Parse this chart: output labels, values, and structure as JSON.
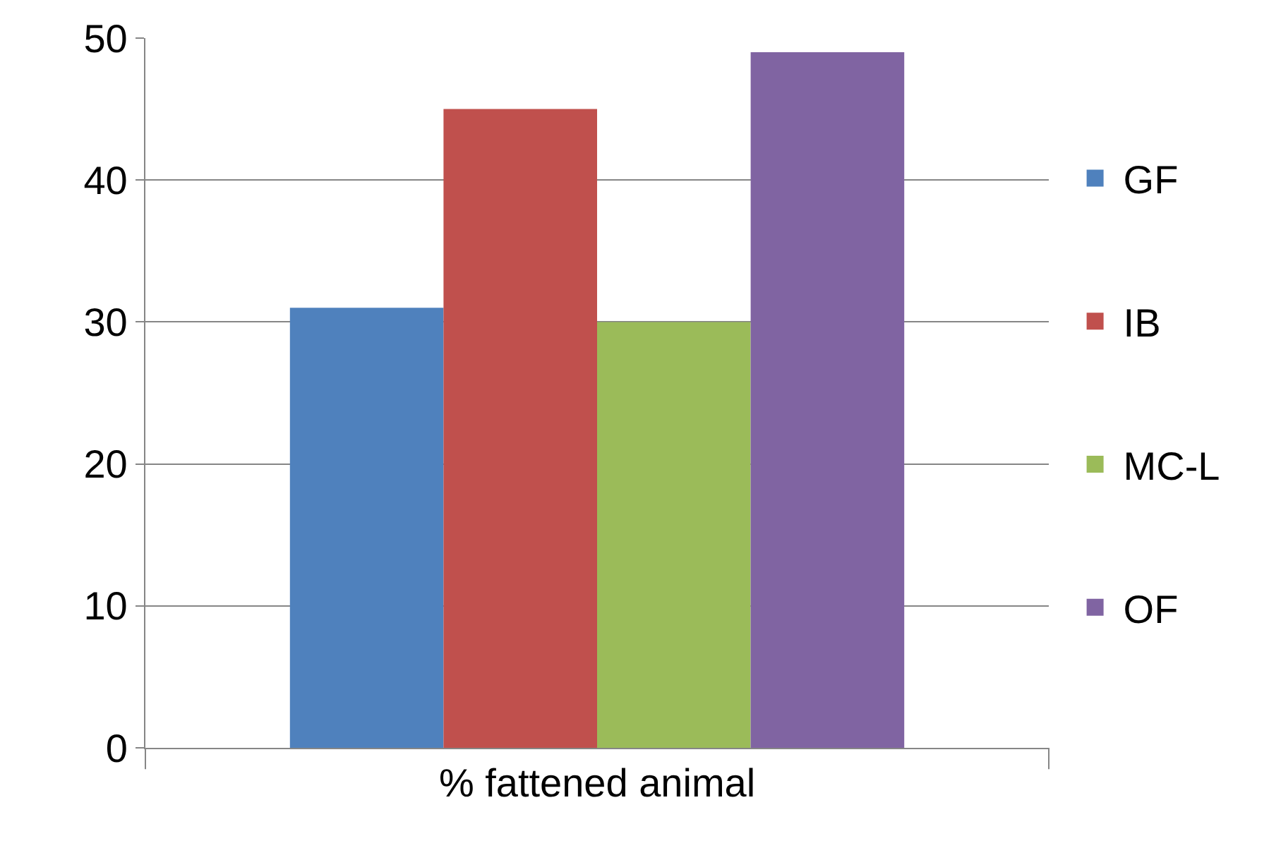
{
  "chart_data": {
    "type": "bar",
    "categories": [
      "% fattened animal"
    ],
    "series": [
      {
        "name": "GF",
        "color": "#4f81bd",
        "values": [
          31
        ]
      },
      {
        "name": "IB",
        "color": "#c0504d",
        "values": [
          45
        ]
      },
      {
        "name": "MC-L",
        "color": "#9bbb59",
        "values": [
          30
        ]
      },
      {
        "name": "OF",
        "color": "#8064a2",
        "values": [
          49
        ]
      }
    ],
    "ylim": [
      0,
      50
    ],
    "yticks": [
      0,
      10,
      20,
      30,
      40,
      50
    ],
    "grid": "y",
    "legend": "right"
  }
}
